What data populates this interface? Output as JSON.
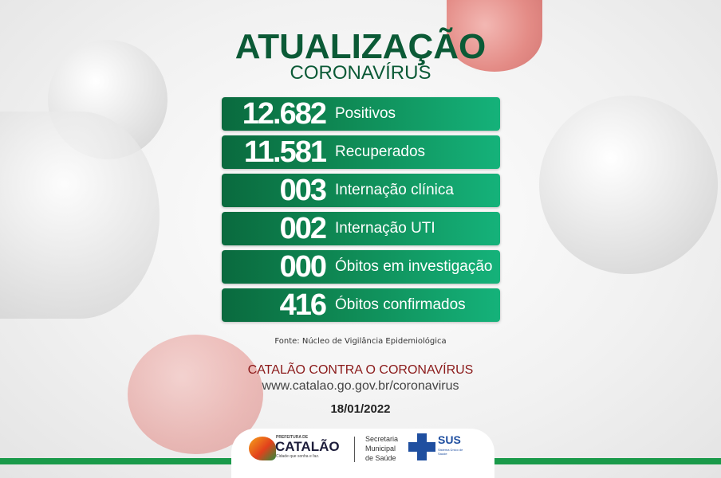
{
  "header": {
    "title": "ATUALIZAÇÃO",
    "subtitle": "CORONAVÍRUS"
  },
  "stats": [
    {
      "value": "12.682",
      "label": "Positivos"
    },
    {
      "value": "11.581",
      "label": "Recuperados"
    },
    {
      "value": "003",
      "label": "Internação clínica"
    },
    {
      "value": "002",
      "label": "Internação UTI"
    },
    {
      "value": "000",
      "label": "Óbitos em investigação"
    },
    {
      "value": "416",
      "label": "Óbitos confirmados"
    }
  ],
  "source": "Fonte: Núcleo de Vigilância Epidemiológica",
  "campaign": "CATALÃO CONTRA O CORONAVÍRUS",
  "url": "www.catalao.go.gov.br/coronavirus",
  "date": "18/01/2022",
  "footer": {
    "prefeitura_small": "PREFEITURA DE",
    "prefeitura_name": "CATALÃO",
    "slogan": "Cidade que sonha e faz.",
    "secretaria": [
      "Secretaria",
      "Municipal",
      "de Saúde"
    ],
    "sus": "SUS",
    "sus_sub": "Sistema Único de Saúde"
  },
  "colors": {
    "green": "#0f8a55",
    "title": "#0b5a36",
    "campaign": "#8b1a1a",
    "virus_red": "#e2807a"
  }
}
